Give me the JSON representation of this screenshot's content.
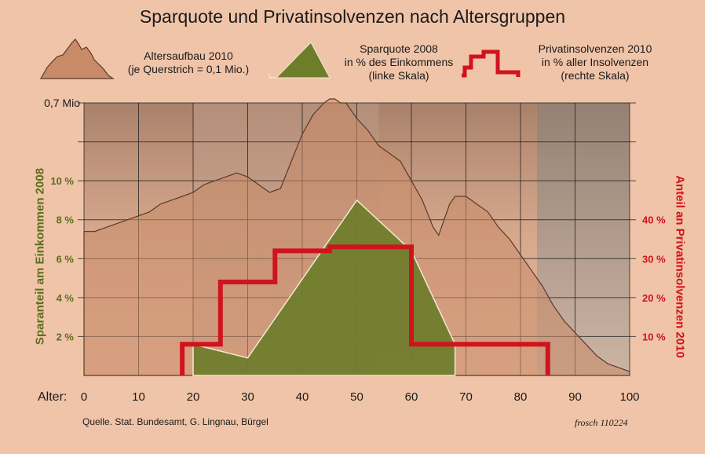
{
  "title": "Sparquote und Privatinsolvenzen nach Altersgruppen",
  "legend": {
    "population": {
      "line1": "Altersaufbau 2010",
      "line2": "(je Querstrich = 0,1 Mio.)"
    },
    "savings": {
      "line1": "Sparquote 2008",
      "line2": "in % des Einkommens",
      "line3": "(linke Skala)"
    },
    "insolvency": {
      "line1": "Privatinsolvenzen 2010",
      "line2": "in % aller Insolvenzen",
      "line3": "(rechte Skala)"
    }
  },
  "footer": {
    "source": "Quelle. Stat. Bundesamt, G. Lingnau, Bürgel",
    "credit": "frosch 110224"
  },
  "chart_data": {
    "type": "area",
    "title": "Sparquote und Privatinsolvenzen nach Altersgruppen",
    "xlabel": "Alter:",
    "xlim": [
      0,
      100
    ],
    "x_ticks": [
      0,
      10,
      20,
      30,
      40,
      50,
      60,
      70,
      80,
      90,
      100
    ],
    "population_axis": {
      "label": "0,7 Mio",
      "max": 0.7,
      "grid_step": 0.1
    },
    "y_left": {
      "label": "Sparanteil am Einkommen 2008",
      "ticks": [
        2,
        4,
        6,
        8,
        10
      ],
      "tick_suffix": " %",
      "ylim": [
        0,
        14
      ]
    },
    "y_right": {
      "label": "Anteil an Privatinsolvenzen 2010",
      "ticks": [
        10,
        20,
        30,
        40
      ],
      "tick_suffix": " %",
      "ylim": [
        0,
        70
      ]
    },
    "series": [
      {
        "name": "Altersaufbau 2010",
        "unit": "Mio.",
        "color": "#c98a68",
        "x": [
          0,
          2,
          4,
          6,
          8,
          10,
          12,
          14,
          16,
          18,
          20,
          22,
          24,
          26,
          28,
          30,
          32,
          34,
          36,
          38,
          40,
          42,
          44,
          45,
          46,
          47,
          48,
          50,
          52,
          54,
          56,
          58,
          60,
          62,
          64,
          65,
          66,
          67,
          68,
          70,
          72,
          74,
          76,
          78,
          80,
          82,
          84,
          86,
          88,
          90,
          92,
          94,
          96,
          98,
          100
        ],
        "values": [
          0.37,
          0.37,
          0.38,
          0.39,
          0.4,
          0.41,
          0.42,
          0.44,
          0.45,
          0.46,
          0.47,
          0.49,
          0.5,
          0.51,
          0.52,
          0.51,
          0.49,
          0.47,
          0.48,
          0.55,
          0.62,
          0.67,
          0.7,
          0.71,
          0.71,
          0.7,
          0.7,
          0.66,
          0.63,
          0.59,
          0.57,
          0.55,
          0.5,
          0.45,
          0.38,
          0.36,
          0.4,
          0.44,
          0.46,
          0.46,
          0.44,
          0.42,
          0.38,
          0.35,
          0.31,
          0.27,
          0.23,
          0.18,
          0.14,
          0.11,
          0.08,
          0.05,
          0.03,
          0.02,
          0.01
        ]
      },
      {
        "name": "Sparquote 2008",
        "unit": "%",
        "axis": "left",
        "color": "#6e7d2a",
        "x": [
          20,
          30,
          50,
          60,
          68
        ],
        "values": [
          1.6,
          0.9,
          9.0,
          6.4,
          1.6
        ]
      },
      {
        "name": "Privatinsolvenzen 2010",
        "unit": "%",
        "axis": "right",
        "color": "#d0131e",
        "step": true,
        "x": [
          18,
          25,
          25,
          35,
          35,
          45,
          45,
          60,
          60,
          85
        ],
        "values": [
          8,
          8,
          24,
          24,
          32,
          32,
          33,
          33,
          8,
          8
        ]
      }
    ]
  }
}
